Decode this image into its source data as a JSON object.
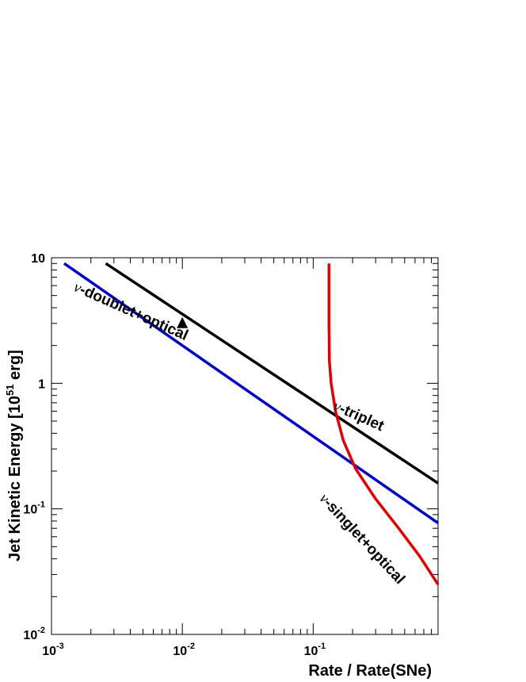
{
  "chart_data": {
    "type": "line",
    "title": "",
    "xlabel": "Rate / Rate(SNe)",
    "ylabel": "Jet Kinetic Energy [10^51 erg]",
    "ylabel_parts": {
      "base": "Jet Kinetic Energy [10",
      "exp": "51",
      "unit": " erg]"
    },
    "x_scale": "log",
    "y_scale": "log",
    "xlim": [
      0.001,
      0.9
    ],
    "ylim": [
      0.01,
      10
    ],
    "grid": false,
    "x_ticks": [
      {
        "value": 0.001,
        "base": "10",
        "exp": "-3"
      },
      {
        "value": 0.01,
        "base": "10",
        "exp": "-2"
      },
      {
        "value": 0.1,
        "base": "10",
        "exp": "-1"
      }
    ],
    "y_ticks": [
      {
        "value": 0.01,
        "base": "10",
        "exp": "-2"
      },
      {
        "value": 0.1,
        "base": "10",
        "exp": "-1"
      },
      {
        "value": 1,
        "label": "1"
      },
      {
        "value": 10,
        "label": "10"
      }
    ],
    "series": [
      {
        "name": "ν-triplet",
        "color": "#000000",
        "points": [
          [
            0.0026,
            9.0
          ],
          [
            0.9,
            0.16
          ]
        ]
      },
      {
        "name": "ν-doublet+optical",
        "color": "#0000cc",
        "points": [
          [
            0.00125,
            9.0
          ],
          [
            0.9,
            0.077
          ]
        ]
      },
      {
        "name": "ν-singlet+optical",
        "color": "#dd0000",
        "points": [
          [
            0.132,
            9.0
          ],
          [
            0.132,
            3.0
          ],
          [
            0.133,
            1.5
          ],
          [
            0.137,
            1.0
          ],
          [
            0.148,
            0.6
          ],
          [
            0.17,
            0.35
          ],
          [
            0.21,
            0.21
          ],
          [
            0.3,
            0.12
          ],
          [
            0.45,
            0.07
          ],
          [
            0.65,
            0.042
          ],
          [
            0.9,
            0.025
          ]
        ]
      }
    ],
    "annotations": [
      {
        "id": "triplet",
        "prefix": "ν",
        "text": "-triplet",
        "x": 0.14,
        "y": 0.62,
        "angle": 24
      },
      {
        "id": "doublet",
        "prefix": "ν",
        "text": "-doublet+optical",
        "x": 0.00145,
        "y": 5.5,
        "angle": 24
      },
      {
        "id": "singlet",
        "prefix": "ν",
        "text": "-singlet+optical",
        "x": 0.11,
        "y": 0.12,
        "angle": 47
      }
    ],
    "markers": [
      {
        "shape": "triangle-up",
        "x": 0.01,
        "y": 3.0,
        "color": "#000000"
      }
    ]
  }
}
